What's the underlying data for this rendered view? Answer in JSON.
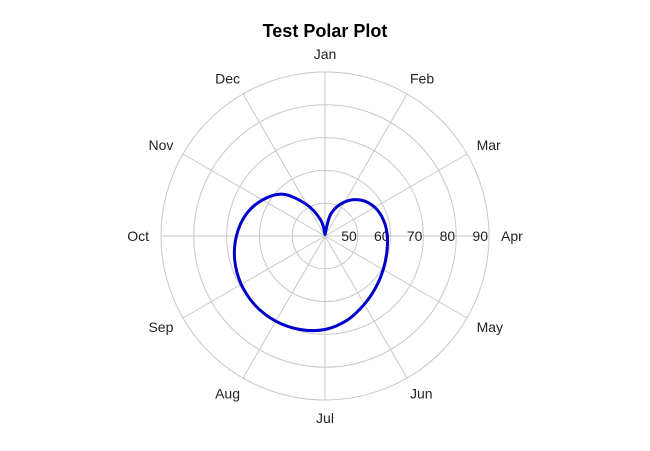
{
  "chart_data": {
    "type": "polar-line",
    "title": "Test Polar Plot",
    "angular_labels": [
      "Jan",
      "Feb",
      "Mar",
      "Apr",
      "May",
      "Jun",
      "Jul",
      "Aug",
      "Sep",
      "Oct",
      "Nov",
      "Dec"
    ],
    "radial_ticks": [
      50,
      60,
      70,
      80,
      90
    ],
    "rlim": [
      40,
      90
    ],
    "grid": true,
    "series": [
      {
        "color": "#0000cc",
        "points": [
          {
            "month": 0.0,
            "r": 40.5
          },
          {
            "month": 0.5,
            "r": 47.0
          },
          {
            "month": 1.0,
            "r": 52.0
          },
          {
            "month": 1.5,
            "r": 55.5
          },
          {
            "month": 2.0,
            "r": 57.5
          },
          {
            "month": 2.5,
            "r": 58.5
          },
          {
            "month": 3.0,
            "r": 59.0
          },
          {
            "month": 3.5,
            "r": 59.5
          },
          {
            "month": 4.0,
            "r": 60.5
          },
          {
            "month": 4.5,
            "r": 62.0
          },
          {
            "month": 5.0,
            "r": 64.0
          },
          {
            "month": 5.5,
            "r": 66.5
          },
          {
            "month": 6.0,
            "r": 68.5
          },
          {
            "month": 6.5,
            "r": 69.5
          },
          {
            "month": 7.0,
            "r": 70.0
          },
          {
            "month": 7.5,
            "r": 70.0
          },
          {
            "month": 8.0,
            "r": 69.5
          },
          {
            "month": 8.5,
            "r": 68.5
          },
          {
            "month": 9.0,
            "r": 67.0
          },
          {
            "month": 9.5,
            "r": 65.0
          },
          {
            "month": 10.0,
            "r": 62.0
          },
          {
            "month": 10.5,
            "r": 58.0
          },
          {
            "month": 11.0,
            "r": 51.0
          },
          {
            "month": 11.5,
            "r": 45.0
          },
          {
            "month": 12.0,
            "r": 40.5
          }
        ]
      }
    ]
  }
}
